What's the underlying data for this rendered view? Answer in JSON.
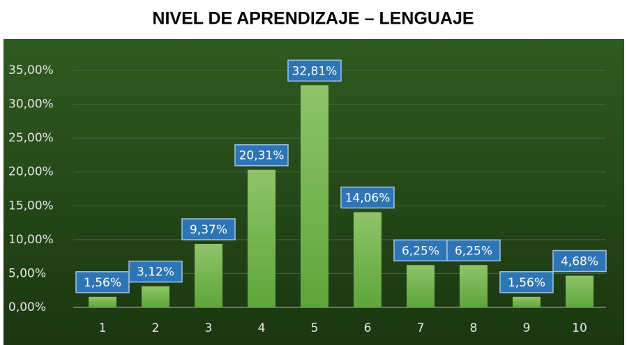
{
  "chart_data": {
    "type": "bar",
    "title": "NIVEL DE APRENDIZAJE – LENGUAJE",
    "categories": [
      "1",
      "2",
      "3",
      "4",
      "5",
      "6",
      "7",
      "8",
      "9",
      "10"
    ],
    "values": [
      1.56,
      3.12,
      9.37,
      20.31,
      32.81,
      14.06,
      6.25,
      6.25,
      1.56,
      4.68
    ],
    "value_labels": [
      "1,56%",
      "3,12%",
      "9,37%",
      "20,31%",
      "32,81%",
      "14,06%",
      "6,25%",
      "6,25%",
      "1,56%",
      "4,68%"
    ],
    "color": "#70ad47",
    "ylim": [
      0,
      35
    ],
    "yticks": [
      {
        "value": 0,
        "label": "0,00%"
      },
      {
        "value": 5,
        "label": "5,00%"
      },
      {
        "value": 10,
        "label": "10,00%"
      },
      {
        "value": 15,
        "label": "15,00%"
      },
      {
        "value": 20,
        "label": "20,00%"
      },
      {
        "value": 25,
        "label": "25,00%"
      },
      {
        "value": 30,
        "label": "30,00%"
      },
      {
        "value": 35,
        "label": "35,00%"
      }
    ],
    "grid": true
  }
}
